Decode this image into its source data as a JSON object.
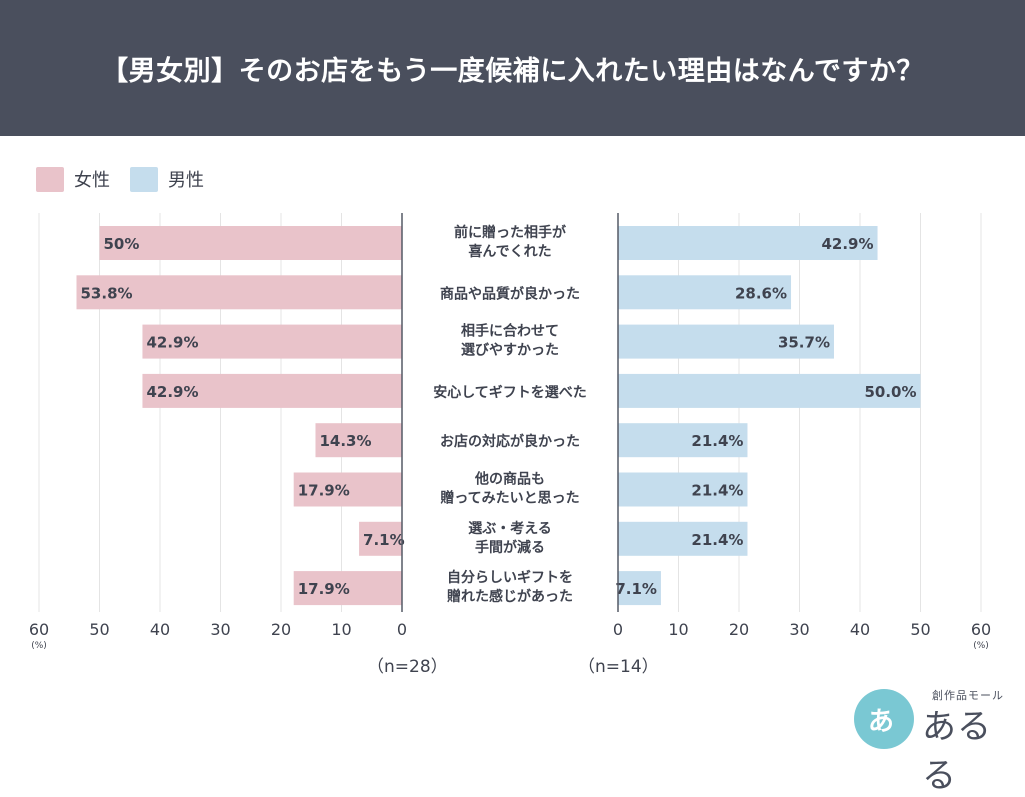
{
  "title": "【男女別】そのお店をもう一度候補に入れたい理由はなんですか？",
  "legend": [
    {
      "label": "女性",
      "color": "#e9c3ca"
    },
    {
      "label": "男性",
      "color": "#c5dded"
    }
  ],
  "n_female": "（n=28）",
  "n_male": "（n=14）",
  "unit_label": "(%)",
  "logo": {
    "sub": "創作品モール",
    "main": "あるる",
    "mark": "あ"
  },
  "chart_data": {
    "type": "bar",
    "orientation": "horizontal-butterfly",
    "categories": [
      [
        "前に贈った相手が",
        "喜んでくれた"
      ],
      [
        "商品や品質が良かった"
      ],
      [
        "相手に合わせて",
        "選びやすかった"
      ],
      [
        "安心してギフトを選べた"
      ],
      [
        "お店の対応が良かった"
      ],
      [
        "他の商品も",
        "贈ってみたいと思った"
      ],
      [
        "選ぶ・考える",
        "手間が減る"
      ],
      [
        "自分らしいギフトを",
        "贈れた感じがあった"
      ]
    ],
    "series": [
      {
        "name": "女性",
        "color": "#e9c3ca",
        "values": [
          50,
          53.8,
          42.9,
          42.9,
          14.3,
          17.9,
          7.1,
          17.9
        ],
        "labels": [
          "50%",
          "53.8%",
          "42.9%",
          "42.9%",
          "14.3%",
          "17.9%",
          "7.1%",
          "17.9%"
        ]
      },
      {
        "name": "男性",
        "color": "#c5dded",
        "values": [
          42.9,
          28.6,
          35.7,
          50.0,
          21.4,
          21.4,
          21.4,
          7.1
        ],
        "labels": [
          "42.9%",
          "28.6%",
          "35.7%",
          "50.0%",
          "21.4%",
          "21.4%",
          "21.4%",
          "7.1%"
        ]
      }
    ],
    "xlim": [
      0,
      60
    ],
    "xticks": [
      0,
      10,
      20,
      30,
      40,
      50,
      60
    ],
    "grid": true
  }
}
